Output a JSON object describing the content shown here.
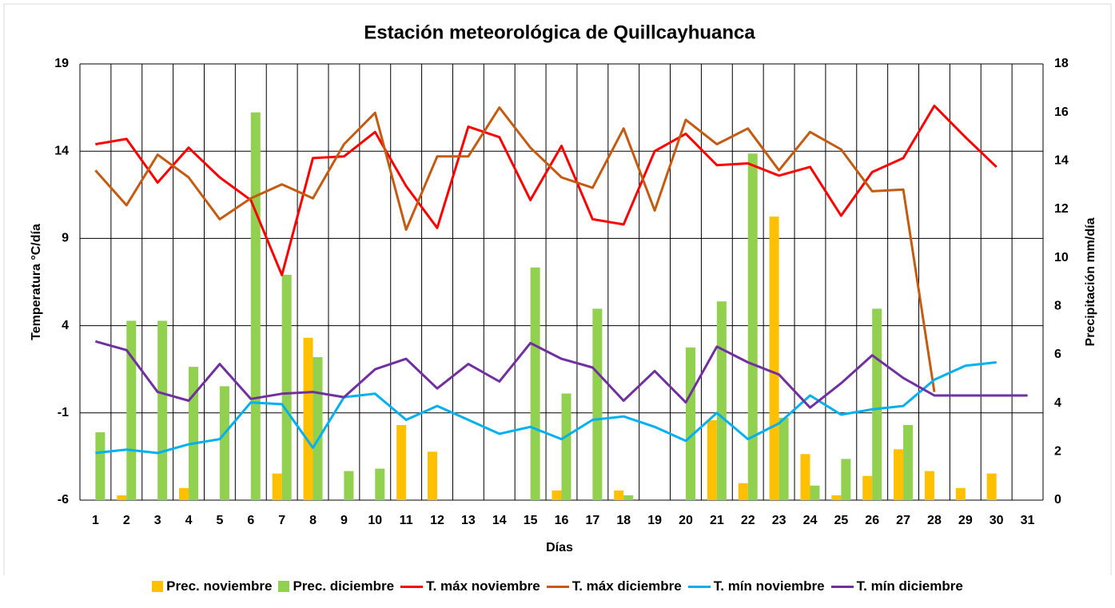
{
  "chart_data": {
    "type": "combo",
    "title": "Estación meteorológica de Quillcayhuanca",
    "x_label": "Días",
    "y_label": "Temperatura °C/día",
    "y2_label": "Precipitación mm/día",
    "categories": [
      "1",
      "2",
      "3",
      "4",
      "5",
      "6",
      "7",
      "8",
      "9",
      "10",
      "11",
      "12",
      "13",
      "14",
      "15",
      "16",
      "17",
      "18",
      "19",
      "20",
      "21",
      "22",
      "23",
      "24",
      "25",
      "26",
      "27",
      "28",
      "29",
      "30",
      "31"
    ],
    "ylim": [
      -6,
      19
    ],
    "yticks": [
      -6,
      -1,
      4,
      9,
      14,
      19
    ],
    "y2lim": [
      0,
      18
    ],
    "y2ticks": [
      0,
      2,
      4,
      6,
      8,
      10,
      12,
      14,
      16,
      18
    ],
    "grid": true,
    "legend": "bottom",
    "series": [
      {
        "name": "Prec. noviembre",
        "type": "bar",
        "axis": "y2",
        "color": "#ffc000",
        "values": [
          0,
          0.2,
          0,
          0.5,
          0,
          0,
          1.1,
          6.7,
          0,
          0,
          3.1,
          2.0,
          0,
          0,
          0,
          0.4,
          0,
          0.4,
          0,
          0,
          3.3,
          0.7,
          11.7,
          1.9,
          0.2,
          1.0,
          2.1,
          1.2,
          0.5,
          1.1,
          0
        ]
      },
      {
        "name": "Prec. diciembre",
        "type": "bar",
        "axis": "y2",
        "color": "#92d050",
        "values": [
          2.8,
          7.4,
          7.4,
          5.5,
          4.7,
          16.0,
          9.3,
          5.9,
          1.2,
          1.3,
          0,
          0,
          0,
          0,
          9.6,
          4.4,
          7.9,
          0.2,
          0,
          6.3,
          8.2,
          14.3,
          3.4,
          0.6,
          1.7,
          7.9,
          3.1,
          0,
          0,
          0,
          0
        ]
      },
      {
        "name": "T. máx noviembre",
        "type": "line",
        "color": "#ff0000",
        "values": [
          14.4,
          14.7,
          12.2,
          14.2,
          12.5,
          11.2,
          6.9,
          13.6,
          13.7,
          15.1,
          12.0,
          9.6,
          15.4,
          14.8,
          11.2,
          14.3,
          10.1,
          9.8,
          14.0,
          15.0,
          13.2,
          13.3,
          12.6,
          13.1,
          10.3,
          12.8,
          13.6,
          16.6,
          14.8,
          13.1,
          null
        ]
      },
      {
        "name": "T. máx diciembre",
        "type": "line",
        "color": "#c55a11",
        "values": [
          12.9,
          10.9,
          13.8,
          12.5,
          10.1,
          11.3,
          12.1,
          11.3,
          14.4,
          16.2,
          9.5,
          13.7,
          13.7,
          16.5,
          14.2,
          12.5,
          11.9,
          15.3,
          10.6,
          15.8,
          14.4,
          15.3,
          12.9,
          15.1,
          14.1,
          11.7,
          11.8,
          0.2,
          null,
          null,
          null
        ]
      },
      {
        "name": "T. mín noviembre",
        "type": "line",
        "color": "#00b0f0",
        "values": [
          -3.3,
          -3.1,
          -3.3,
          -2.8,
          -2.5,
          -0.4,
          -0.5,
          -3.0,
          -0.1,
          0.1,
          -1.4,
          -0.6,
          -1.4,
          -2.2,
          -1.8,
          -2.5,
          -1.4,
          -1.2,
          -1.8,
          -2.6,
          -1.0,
          -2.5,
          -1.6,
          0.0,
          -1.1,
          -0.8,
          -0.6,
          0.9,
          1.7,
          1.9,
          null
        ]
      },
      {
        "name": "T. mín diciembre",
        "type": "line",
        "color": "#7030a0",
        "values": [
          3.1,
          2.6,
          0.2,
          -0.3,
          1.8,
          -0.2,
          0.1,
          0.2,
          -0.1,
          1.5,
          2.1,
          0.4,
          1.8,
          0.8,
          3.0,
          2.1,
          1.6,
          -0.3,
          1.4,
          -0.4,
          2.8,
          1.9,
          1.2,
          -0.7,
          0.7,
          2.3,
          1.0,
          0.0,
          0.0,
          0.0,
          0.0
        ]
      }
    ]
  }
}
